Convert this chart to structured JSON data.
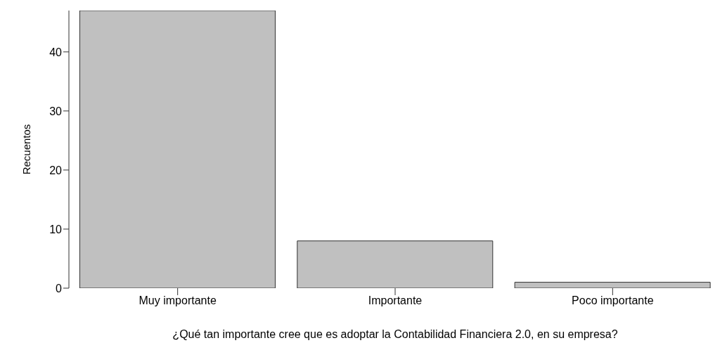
{
  "chart_data": {
    "type": "bar",
    "xlabel": "¿Qué tan importante cree que es adoptar la Contabilidad Financiera 2.0, en su empresa?",
    "ylabel": "Recuentos",
    "categories": [
      "Muy importante",
      "Importante",
      "Poco importante"
    ],
    "values": [
      47,
      8,
      1
    ],
    "color": "#c0c0c0",
    "ylim": [
      0,
      47
    ],
    "yticks": [
      0,
      10,
      20,
      30,
      40
    ],
    "grid": false,
    "legend": false
  }
}
